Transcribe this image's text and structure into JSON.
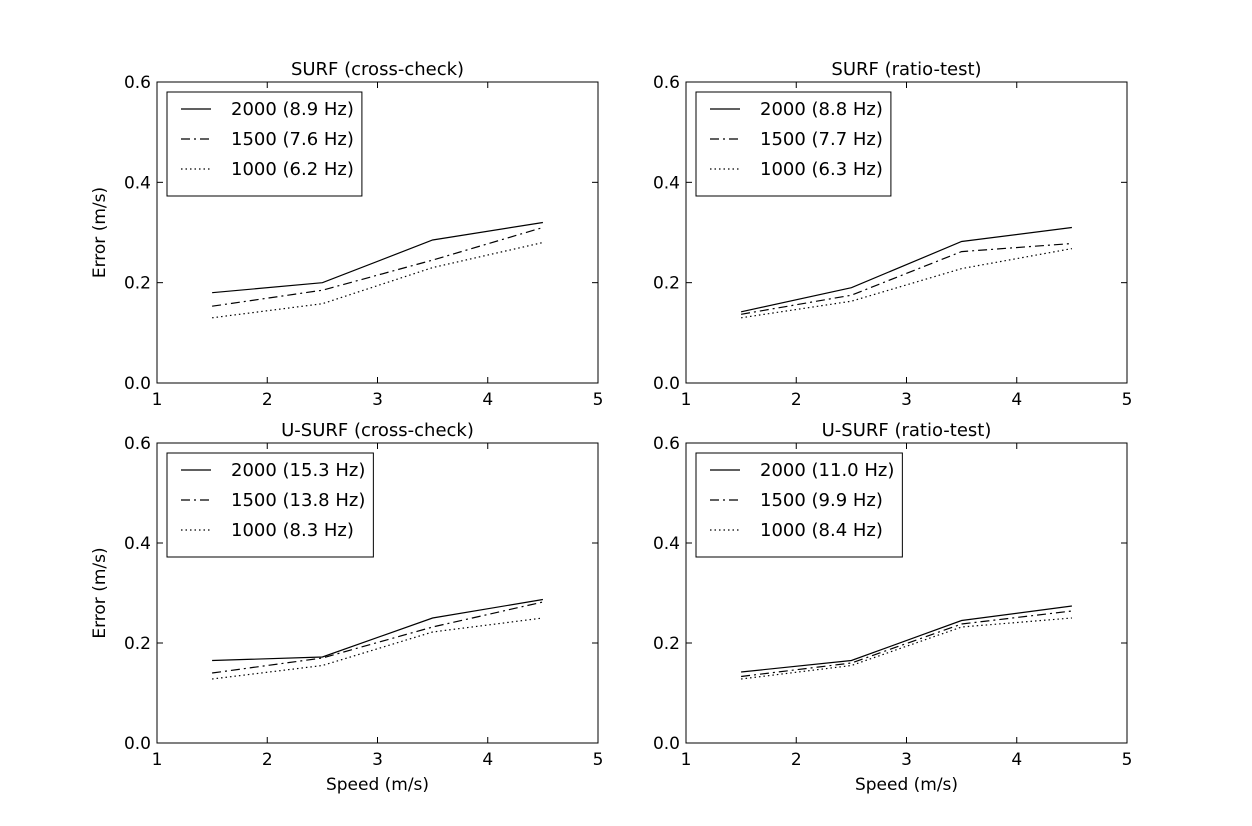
{
  "chart_data": [
    {
      "type": "line",
      "title": "SURF (cross-check)",
      "xlabel": "",
      "ylabel": "Error (m/s)",
      "xlim": [
        1,
        5
      ],
      "ylim": [
        0.0,
        0.6
      ],
      "xticks": [
        "1",
        "2",
        "3",
        "4",
        "5"
      ],
      "yticks": [
        "0.0",
        "0.2",
        "0.4",
        "0.6"
      ],
      "legend_position": "top-left",
      "x": [
        1.5,
        2.5,
        3.5,
        4.5
      ],
      "series": [
        {
          "name": "2000 (8.9 Hz)",
          "style": "solid",
          "values": [
            0.18,
            0.2,
            0.285,
            0.32
          ]
        },
        {
          "name": "1500 (7.6 Hz)",
          "style": "dashdot",
          "values": [
            0.153,
            0.185,
            0.245,
            0.31
          ]
        },
        {
          "name": "1000 (6.2 Hz)",
          "style": "dotted",
          "values": [
            0.13,
            0.158,
            0.23,
            0.28
          ]
        }
      ]
    },
    {
      "type": "line",
      "title": "SURF (ratio-test)",
      "xlabel": "",
      "ylabel": "",
      "xlim": [
        1,
        5
      ],
      "ylim": [
        0.0,
        0.6
      ],
      "xticks": [
        "1",
        "2",
        "3",
        "4",
        "5"
      ],
      "yticks": [
        "0.0",
        "0.2",
        "0.4",
        "0.6"
      ],
      "legend_position": "top-left",
      "x": [
        1.5,
        2.5,
        3.5,
        4.5
      ],
      "series": [
        {
          "name": "2000 (8.8 Hz)",
          "style": "solid",
          "values": [
            0.142,
            0.19,
            0.282,
            0.31
          ]
        },
        {
          "name": "1500 (7.7 Hz)",
          "style": "dashdot",
          "values": [
            0.137,
            0.175,
            0.262,
            0.278
          ]
        },
        {
          "name": "1000 (6.3 Hz)",
          "style": "dotted",
          "values": [
            0.13,
            0.163,
            0.228,
            0.268
          ]
        }
      ]
    },
    {
      "type": "line",
      "title": "U-SURF (cross-check)",
      "xlabel": "Speed (m/s)",
      "ylabel": "Error (m/s)",
      "xlim": [
        1,
        5
      ],
      "ylim": [
        0.0,
        0.6
      ],
      "xticks": [
        "1",
        "2",
        "3",
        "4",
        "5"
      ],
      "yticks": [
        "0.0",
        "0.2",
        "0.4",
        "0.6"
      ],
      "legend_position": "top-left",
      "x": [
        1.5,
        2.5,
        3.5,
        4.5
      ],
      "series": [
        {
          "name": "2000 (15.3 Hz)",
          "style": "solid",
          "values": [
            0.165,
            0.172,
            0.25,
            0.287
          ]
        },
        {
          "name": "1500 (13.8 Hz)",
          "style": "dashdot",
          "values": [
            0.14,
            0.17,
            0.232,
            0.282
          ]
        },
        {
          "name": "1000 (8.3 Hz)",
          "style": "dotted",
          "values": [
            0.128,
            0.155,
            0.222,
            0.25
          ]
        }
      ]
    },
    {
      "type": "line",
      "title": "U-SURF (ratio-test)",
      "xlabel": "Speed (m/s)",
      "ylabel": "",
      "xlim": [
        1,
        5
      ],
      "ylim": [
        0.0,
        0.6
      ],
      "xticks": [
        "1",
        "2",
        "3",
        "4",
        "5"
      ],
      "yticks": [
        "0.0",
        "0.2",
        "0.4",
        "0.6"
      ],
      "legend_position": "top-left",
      "x": [
        1.5,
        2.5,
        3.5,
        4.5
      ],
      "series": [
        {
          "name": "2000 (11.0 Hz)",
          "style": "solid",
          "values": [
            0.142,
            0.165,
            0.245,
            0.274
          ]
        },
        {
          "name": "1500 (9.9 Hz)",
          "style": "dashdot",
          "values": [
            0.133,
            0.16,
            0.238,
            0.264
          ]
        },
        {
          "name": "1000 (8.4 Hz)",
          "style": "dotted",
          "values": [
            0.128,
            0.155,
            0.232,
            0.25
          ]
        }
      ]
    }
  ],
  "colors": {
    "line": "#000000",
    "background": "#ffffff"
  }
}
